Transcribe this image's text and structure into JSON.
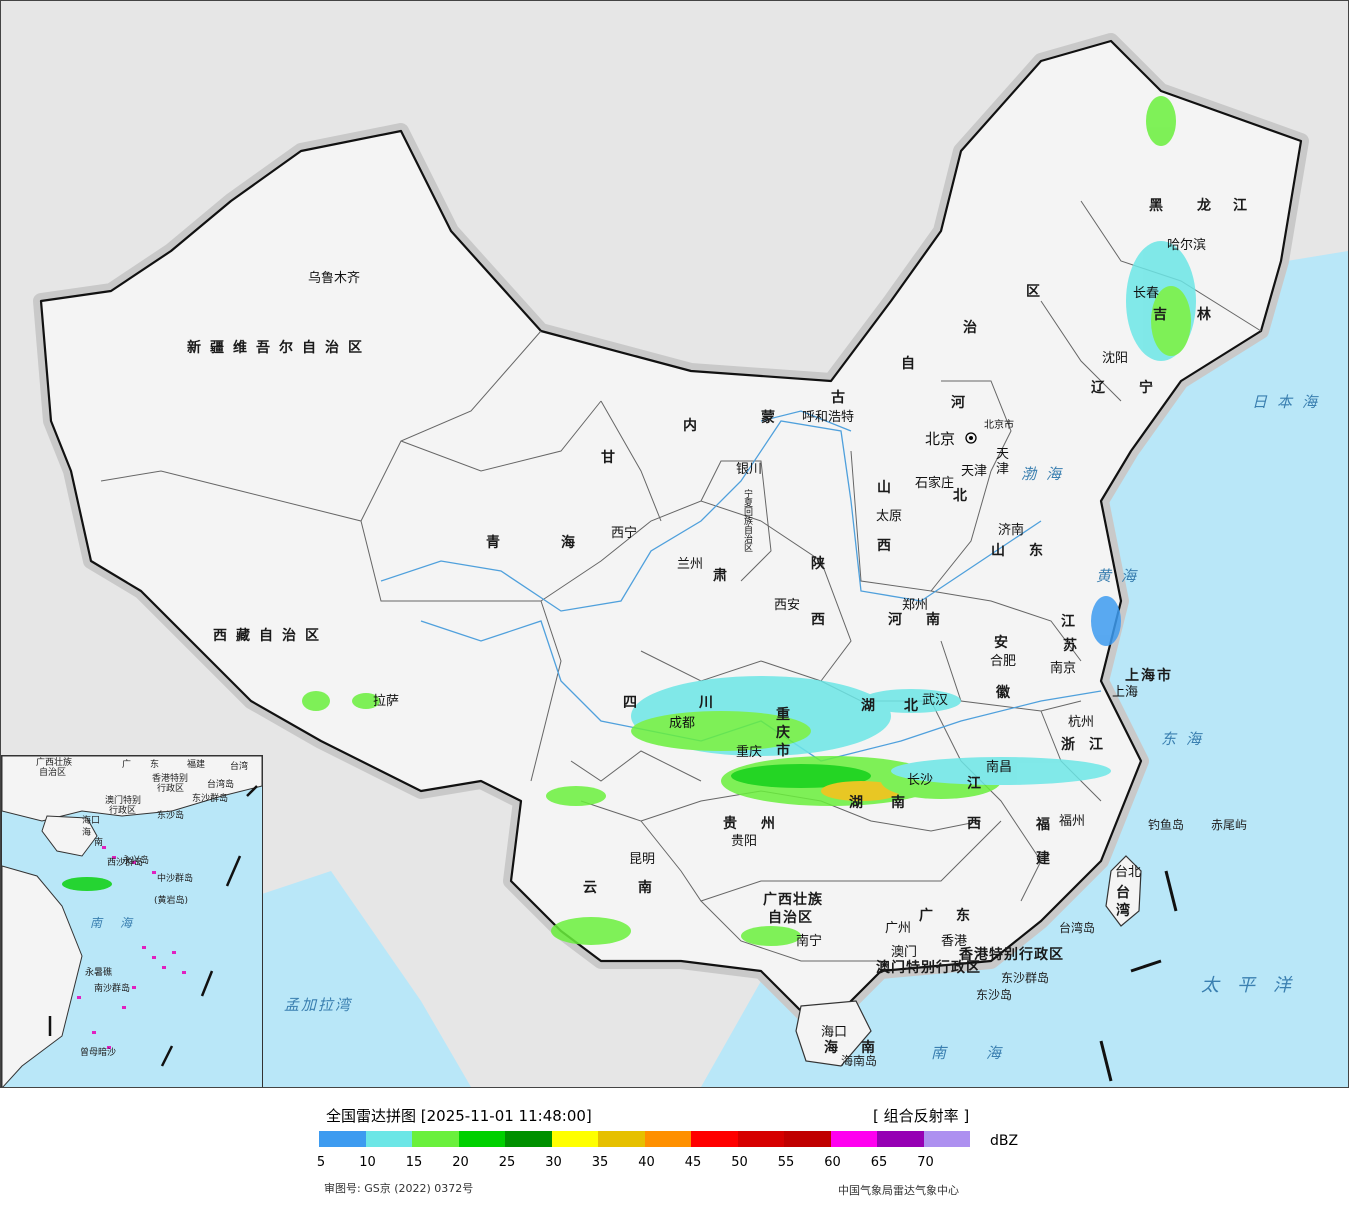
{
  "map": {
    "provinces": [
      {
        "text": "新疆维吾尔自治区"
      },
      {
        "text": "西藏自治区"
      },
      {
        "text": "青"
      },
      {
        "text": "海"
      },
      {
        "text": "甘"
      },
      {
        "text": "肃"
      },
      {
        "text": "内"
      },
      {
        "text": "蒙"
      },
      {
        "text": "古"
      },
      {
        "text": "自"
      },
      {
        "text": "治"
      },
      {
        "text": "区"
      },
      {
        "text": "黑"
      },
      {
        "text": "龙"
      },
      {
        "text": "江"
      },
      {
        "text": "吉"
      },
      {
        "text": "林"
      },
      {
        "text": "辽"
      },
      {
        "text": "宁"
      },
      {
        "text": "河"
      },
      {
        "text": "北"
      },
      {
        "text": "山"
      },
      {
        "text": "西"
      },
      {
        "text": "山"
      },
      {
        "text": "东"
      },
      {
        "text": "陕"
      },
      {
        "text": "西"
      },
      {
        "text": "河"
      },
      {
        "text": "南"
      },
      {
        "text": "江"
      },
      {
        "text": "苏"
      },
      {
        "text": "安"
      },
      {
        "text": "徽"
      },
      {
        "text": "上海市"
      },
      {
        "text": "四"
      },
      {
        "text": "川"
      },
      {
        "text": "重"
      },
      {
        "text": "庆"
      },
      {
        "text": "市"
      },
      {
        "text": "湖"
      },
      {
        "text": "北"
      },
      {
        "text": "浙"
      },
      {
        "text": "江"
      },
      {
        "text": "湖"
      },
      {
        "text": "南"
      },
      {
        "text": "江"
      },
      {
        "text": "西"
      },
      {
        "text": "福"
      },
      {
        "text": "建"
      },
      {
        "text": "贵"
      },
      {
        "text": "州"
      },
      {
        "text": "云"
      },
      {
        "text": "南"
      },
      {
        "text": "广西壮族"
      },
      {
        "text": "自治区"
      },
      {
        "text": "广"
      },
      {
        "text": "东"
      },
      {
        "text": "海"
      },
      {
        "text": "南"
      },
      {
        "text": "台北"
      },
      {
        "text": "台"
      },
      {
        "text": "湾"
      },
      {
        "text": "香港特别行政区"
      },
      {
        "text": "澳门特别行政区"
      },
      {
        "text": "北京市"
      },
      {
        "text": "天"
      },
      {
        "text": "津"
      },
      {
        "text": "宁夏回族自治区"
      }
    ],
    "cities": [
      {
        "text": "乌鲁木齐"
      },
      {
        "text": "拉萨"
      },
      {
        "text": "西宁"
      },
      {
        "text": "兰州"
      },
      {
        "text": "银川"
      },
      {
        "text": "呼和浩特"
      },
      {
        "text": "北京"
      },
      {
        "text": "天津"
      },
      {
        "text": "石家庄"
      },
      {
        "text": "太原"
      },
      {
        "text": "济南"
      },
      {
        "text": "哈尔滨"
      },
      {
        "text": "长春"
      },
      {
        "text": "沈阳"
      },
      {
        "text": "西安"
      },
      {
        "text": "郑州"
      },
      {
        "text": "合肥"
      },
      {
        "text": "南京"
      },
      {
        "text": "上海"
      },
      {
        "text": "杭州"
      },
      {
        "text": "武汉"
      },
      {
        "text": "成都"
      },
      {
        "text": "重庆"
      },
      {
        "text": "长沙"
      },
      {
        "text": "南昌"
      },
      {
        "text": "福州"
      },
      {
        "text": "贵阳"
      },
      {
        "text": "昆明"
      },
      {
        "text": "南宁"
      },
      {
        "text": "广州"
      },
      {
        "text": "澳门"
      },
      {
        "text": "香港"
      },
      {
        "text": "海口"
      }
    ],
    "seas": [
      {
        "text": "日本海"
      },
      {
        "text": "渤海"
      },
      {
        "text": "黄海"
      },
      {
        "text": "东海"
      },
      {
        "text": "太平洋"
      },
      {
        "text": "南海"
      },
      {
        "text": "孟加拉湾"
      }
    ],
    "islands": [
      {
        "text": "钓鱼岛"
      },
      {
        "text": "赤尾屿"
      },
      {
        "text": "台湾岛"
      },
      {
        "text": "东沙群岛"
      },
      {
        "text": "东沙岛"
      },
      {
        "text": "海南岛"
      }
    ],
    "inset_labels": [
      {
        "text": "广西壮族"
      },
      {
        "text": "自治区"
      },
      {
        "text": "广"
      },
      {
        "text": "东"
      },
      {
        "text": "福建"
      },
      {
        "text": "台湾"
      },
      {
        "text": "香港特别"
      },
      {
        "text": "行政区"
      },
      {
        "text": "澳门特别"
      },
      {
        "text": "行政区"
      },
      {
        "text": "东沙群岛"
      },
      {
        "text": "台湾岛"
      },
      {
        "text": "东沙岛"
      },
      {
        "text": "海口"
      },
      {
        "text": "海"
      },
      {
        "text": "南"
      },
      {
        "text": "西沙群岛"
      },
      {
        "text": "中沙群岛"
      },
      {
        "text": "(黄岩岛)"
      },
      {
        "text": "南"
      },
      {
        "text": "海"
      },
      {
        "text": "永暑礁"
      },
      {
        "text": "南沙群岛"
      },
      {
        "text": "曾母暗沙"
      },
      {
        "text": "永兴岛"
      }
    ]
  },
  "legend": {
    "title": "全国雷达拼图 [2025-11-01 11:48:00]",
    "product": "[ 组合反射率 ]",
    "unit": "dBZ",
    "colors": [
      "#3d9bf0",
      "#6ce6e6",
      "#6af03c",
      "#00d000",
      "#009000",
      "#ffff00",
      "#e6c000",
      "#ff9000",
      "#ff0000",
      "#d60000",
      "#c00000",
      "#ff00f0",
      "#9600b4",
      "#ad90f0"
    ],
    "ticks": [
      "5",
      "10",
      "15",
      "20",
      "25",
      "30",
      "35",
      "40",
      "45",
      "50",
      "55",
      "60",
      "65",
      "70"
    ],
    "approval_no": "审图号: GS京 (2022) 0372号",
    "agency": "中国气象局雷达气象中心"
  }
}
